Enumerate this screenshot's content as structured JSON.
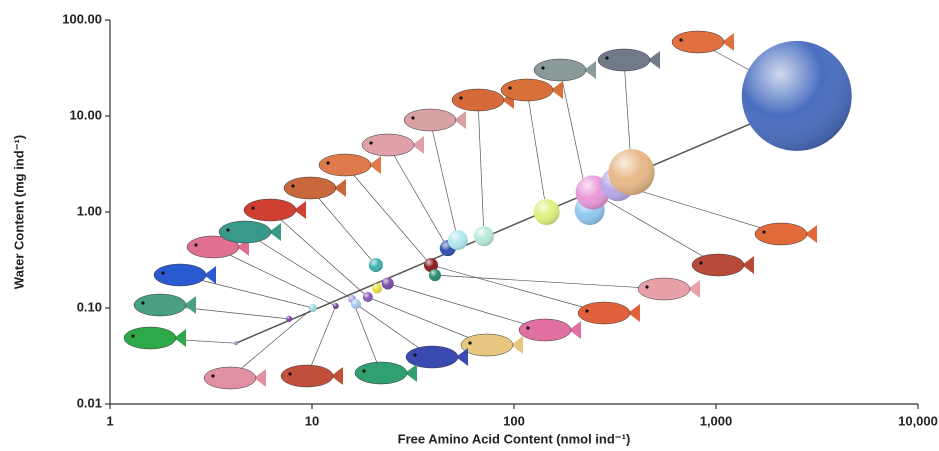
{
  "chart_data": {
    "type": "bubble",
    "x_label": "Free Amino Acid Content (nmol ind⁻¹)",
    "y_label": "Water Content (mg ind⁻¹)",
    "log_x": true,
    "log_y": true,
    "xlim": [
      1,
      10000
    ],
    "ylim": [
      0.01,
      100
    ],
    "xticks": [
      1,
      10,
      100,
      {
        "value": 1000,
        "label": "1,000"
      },
      {
        "value": 10000,
        "label": "10,000"
      }
    ],
    "yticks": [
      {
        "value": 0.01,
        "label": "0.01"
      },
      {
        "value": 0.1,
        "label": "0.10"
      },
      {
        "value": 1,
        "label": "1.00"
      },
      {
        "value": 10,
        "label": "10.00"
      },
      {
        "value": 100,
        "label": "100.00"
      }
    ],
    "x": [
      4.2,
      7.7,
      10.1,
      13.1,
      15.8,
      16.5,
      18.9,
      20.7,
      21,
      23.7,
      38.8,
      40.6,
      47,
      52.7,
      71,
      145,
      237,
      245,
      326,
      382,
      2510
    ],
    "values": [
      0.043,
      0.077,
      0.1,
      0.105,
      0.124,
      0.11,
      0.13,
      0.28,
      0.16,
      0.18,
      0.28,
      0.22,
      0.42,
      0.51,
      0.56,
      1.0,
      1.05,
      1.6,
      1.95,
      2.6,
      16.2
    ],
    "sizes": [
      2,
      3,
      4,
      3,
      4,
      5,
      5,
      7,
      5,
      6,
      7,
      6,
      8,
      10,
      10,
      13,
      15,
      17,
      17,
      23,
      55
    ],
    "colors": [
      "#8090b0",
      "#7a3c9a",
      "#9fd8e0",
      "#6a3c9a",
      "#b0a8e0",
      "#a8c8f0",
      "#8a5ab0",
      "#40b0b0",
      "#e8e040",
      "#7a4aa8",
      "#8a1c20",
      "#2a8a70",
      "#3050b0",
      "#b0e8f0",
      "#b8e8d8",
      "#e0f080",
      "#90c8f0",
      "#e898d8",
      "#b8a8e8",
      "#e8b888",
      "#4a6ec0"
    ],
    "trendline": {
      "x": [
        4.2,
        2510
      ],
      "y": [
        0.043,
        13.3
      ]
    }
  }
}
